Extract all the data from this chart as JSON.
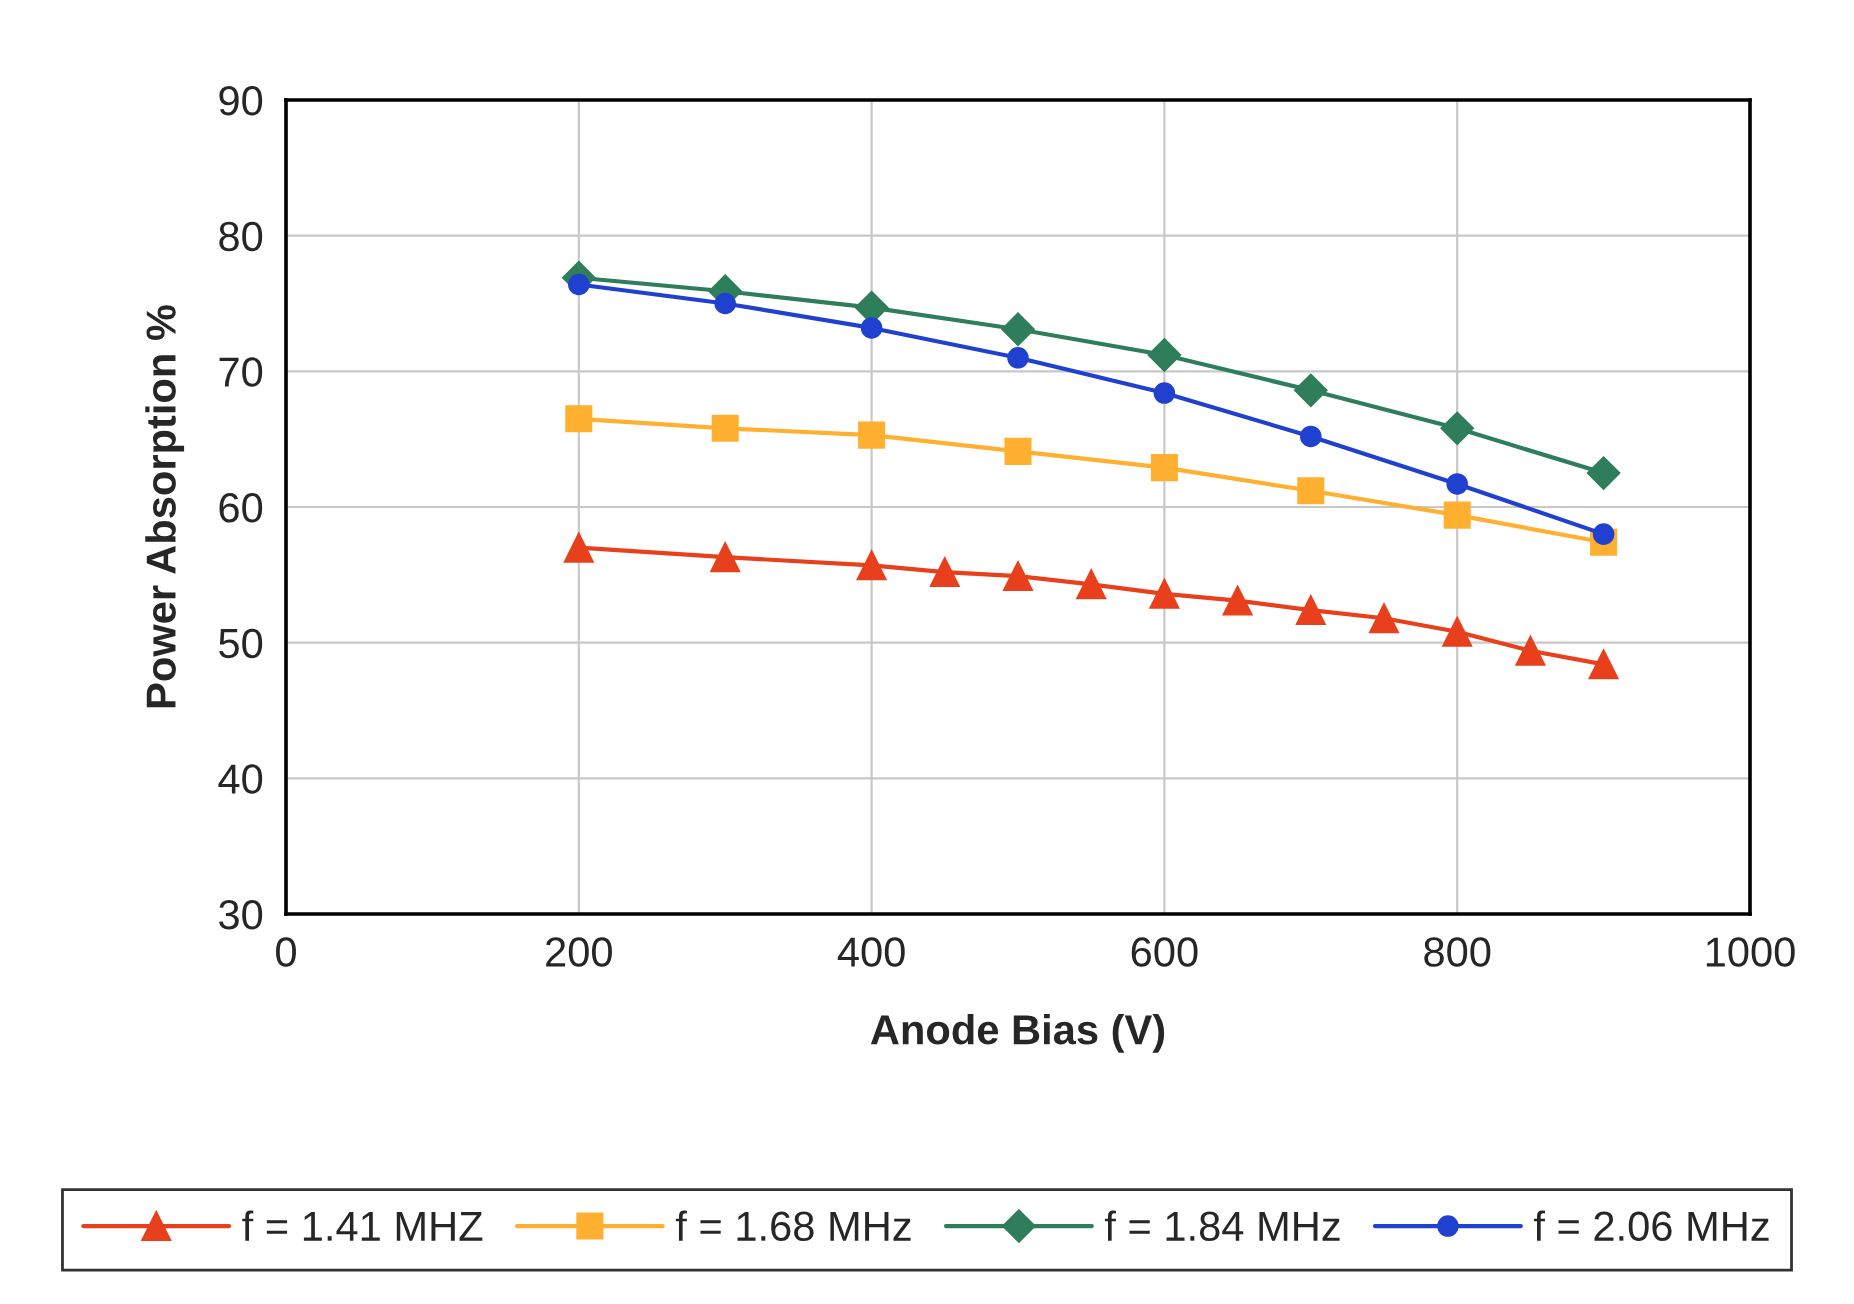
{
  "chart_data": {
    "type": "line",
    "xlabel": "Anode Bias (V)",
    "ylabel": "Power Absorption %",
    "xlim": [
      0,
      1000
    ],
    "xticks": [
      0,
      200,
      400,
      600,
      800,
      1000
    ],
    "ylim": [
      30,
      90
    ],
    "yticks": [
      30,
      40,
      50,
      60,
      70,
      80,
      90
    ],
    "grid": true,
    "legend": "bottom",
    "line_style": "solid",
    "series": [
      {
        "name": "f = 1.41 MHZ",
        "color": "#e8401c",
        "marker": "triangle",
        "x": [
          200,
          300,
          400,
          450,
          500,
          550,
          600,
          650,
          700,
          750,
          800,
          850,
          900
        ],
        "values": [
          57.0,
          56.3,
          55.7,
          55.2,
          54.9,
          54.3,
          53.6,
          53.1,
          52.4,
          51.8,
          50.8,
          49.4,
          48.4
        ]
      },
      {
        "name": "f = 1.68 MHz",
        "color": "#ffb030",
        "marker": "square",
        "x": [
          200,
          300,
          400,
          500,
          600,
          700,
          800,
          900
        ],
        "values": [
          66.5,
          65.8,
          65.3,
          64.1,
          62.9,
          61.2,
          59.4,
          57.4
        ]
      },
      {
        "name": "f = 1.84 MHz",
        "color": "#2e7d5b",
        "marker": "diamond",
        "x": [
          200,
          300,
          400,
          500,
          600,
          700,
          800,
          900
        ],
        "values": [
          76.9,
          75.9,
          74.7,
          73.1,
          71.2,
          68.6,
          65.8,
          62.5
        ]
      },
      {
        "name": "f = 2.06 MHz",
        "color": "#2040d0",
        "marker": "circle",
        "x": [
          200,
          300,
          400,
          500,
          600,
          700,
          800,
          900
        ],
        "values": [
          76.4,
          75.0,
          73.2,
          71.0,
          68.4,
          65.2,
          61.7,
          58.0
        ]
      }
    ]
  }
}
